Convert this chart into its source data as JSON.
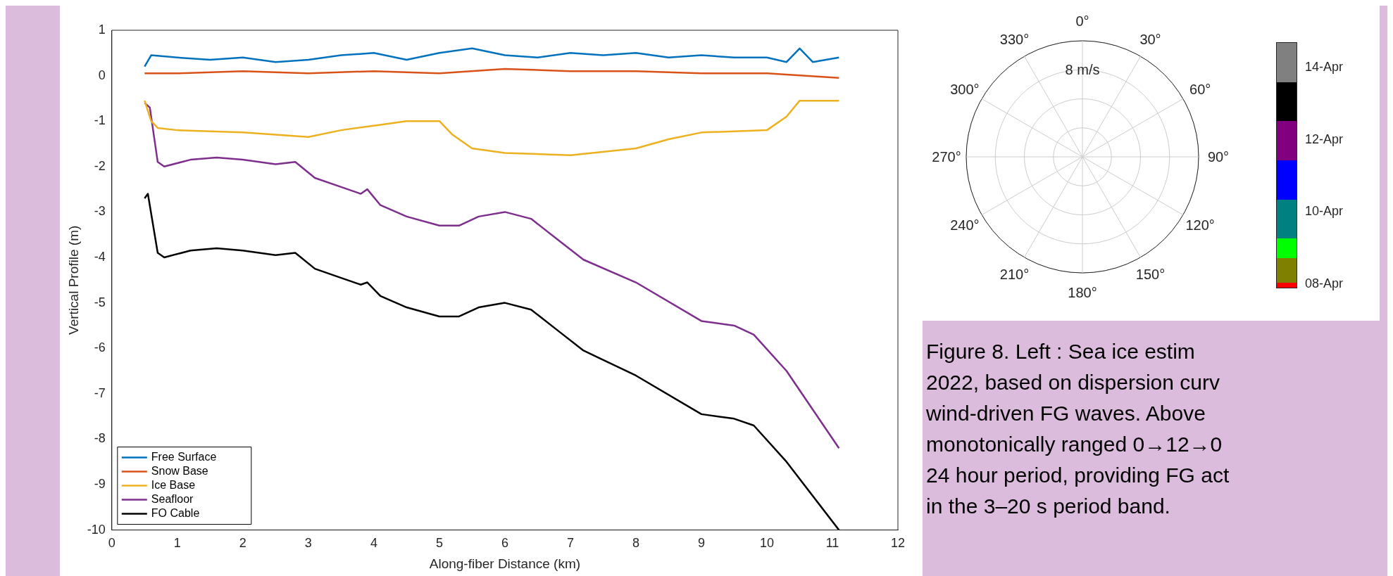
{
  "chart_data": [
    {
      "type": "line",
      "xlabel": "Along-fiber Distance (km)",
      "ylabel": "Vertical Profile (m)",
      "xlim": [
        0,
        12
      ],
      "xticks": [
        0,
        1,
        2,
        3,
        4,
        5,
        6,
        7,
        8,
        9,
        10,
        11,
        12
      ],
      "ylim": [
        -10,
        1
      ],
      "yticks": [
        -10,
        -9,
        -8,
        -7,
        -6,
        -5,
        -4,
        -3,
        -2,
        -1,
        0,
        1
      ],
      "legend": "bottom left",
      "grid": false,
      "series": [
        {
          "name": "Free Surface",
          "color": "#0072bd",
          "x": [
            0.5,
            0.6,
            1,
            1.5,
            2,
            2.5,
            3,
            3.5,
            4,
            4.5,
            5,
            5.5,
            6,
            6.5,
            7,
            7.5,
            8,
            8.5,
            9,
            9.5,
            10,
            10.3,
            10.5,
            10.7,
            11.1
          ],
          "values": [
            0.2,
            0.45,
            0.4,
            0.35,
            0.4,
            0.3,
            0.35,
            0.45,
            0.5,
            0.35,
            0.5,
            0.6,
            0.45,
            0.4,
            0.5,
            0.45,
            0.5,
            0.4,
            0.45,
            0.4,
            0.4,
            0.3,
            0.6,
            0.3,
            0.4
          ]
        },
        {
          "name": "Snow Base",
          "color": "#d95319",
          "x": [
            0.5,
            1,
            2,
            3,
            4,
            5,
            6,
            7,
            8,
            9,
            10,
            11.1
          ],
          "values": [
            0.05,
            0.05,
            0.1,
            0.05,
            0.1,
            0.05,
            0.15,
            0.1,
            0.1,
            0.05,
            0.05,
            -0.05
          ]
        },
        {
          "name": "Ice Base",
          "color": "#edb120",
          "x": [
            0.5,
            0.6,
            0.7,
            1,
            2,
            3,
            3.5,
            4,
            4.5,
            5,
            5.2,
            5.5,
            6,
            7,
            8,
            8.5,
            9,
            10,
            10.3,
            10.5,
            11.1
          ],
          "values": [
            -0.55,
            -1.0,
            -1.15,
            -1.2,
            -1.25,
            -1.35,
            -1.2,
            -1.1,
            -1.0,
            -1.0,
            -1.3,
            -1.6,
            -1.7,
            -1.75,
            -1.6,
            -1.4,
            -1.25,
            -1.2,
            -0.9,
            -0.55,
            -0.55
          ]
        },
        {
          "name": "Seafloor",
          "color": "#7e2f8e",
          "x": [
            0.5,
            0.58,
            0.7,
            0.8,
            1.2,
            1.6,
            2,
            2.5,
            2.8,
            3.1,
            3.5,
            3.8,
            3.9,
            4.1,
            4.5,
            5,
            5.3,
            5.6,
            6,
            6.4,
            6.8,
            7.2,
            8,
            9,
            9.5,
            9.8,
            10.3,
            11.1
          ],
          "values": [
            -0.6,
            -0.7,
            -1.9,
            -2.0,
            -1.85,
            -1.8,
            -1.85,
            -1.95,
            -1.9,
            -2.25,
            -2.45,
            -2.6,
            -2.5,
            -2.85,
            -3.1,
            -3.3,
            -3.3,
            -3.1,
            -3.0,
            -3.15,
            -3.6,
            -4.05,
            -4.55,
            -5.4,
            -5.5,
            -5.7,
            -6.5,
            -8.2
          ]
        },
        {
          "name": "FO Cable",
          "color": "#000000",
          "x": [
            0.5,
            0.55,
            0.7,
            0.8,
            1.2,
            1.6,
            2,
            2.5,
            2.8,
            3.1,
            3.5,
            3.8,
            3.9,
            4.1,
            4.5,
            5,
            5.3,
            5.6,
            6,
            6.4,
            6.8,
            7.2,
            8,
            9,
            9.5,
            9.8,
            10.3,
            11.1
          ],
          "values": [
            -2.7,
            -2.6,
            -3.9,
            -4.0,
            -3.85,
            -3.8,
            -3.85,
            -3.95,
            -3.9,
            -4.25,
            -4.45,
            -4.6,
            -4.55,
            -4.85,
            -5.1,
            -5.3,
            -5.3,
            -5.1,
            -5.0,
            -5.15,
            -5.6,
            -6.05,
            -6.6,
            -7.45,
            -7.55,
            -7.7,
            -8.5,
            -10
          ]
        }
      ]
    },
    {
      "type": "other",
      "annotations": [
        "0°",
        "30°",
        "60°",
        "90°",
        "120°",
        "150°",
        "180°",
        "210°",
        "240°",
        "270°",
        "300°",
        "330°",
        "8 m/s",
        "14-Apr",
        "12-Apr",
        "10-Apr",
        "08-Apr"
      ]
    },
    {
      "type": "other",
      "annotations": [
        "Figure 8. Left : Sea ice estim",
        "2022, based on dispersion curv",
        "wind-driven FG waves. Above",
        "monotonically ranged 0→12→0",
        "24 hour period, providing FG act",
        "in the 3–20 s period band."
      ]
    }
  ]
}
